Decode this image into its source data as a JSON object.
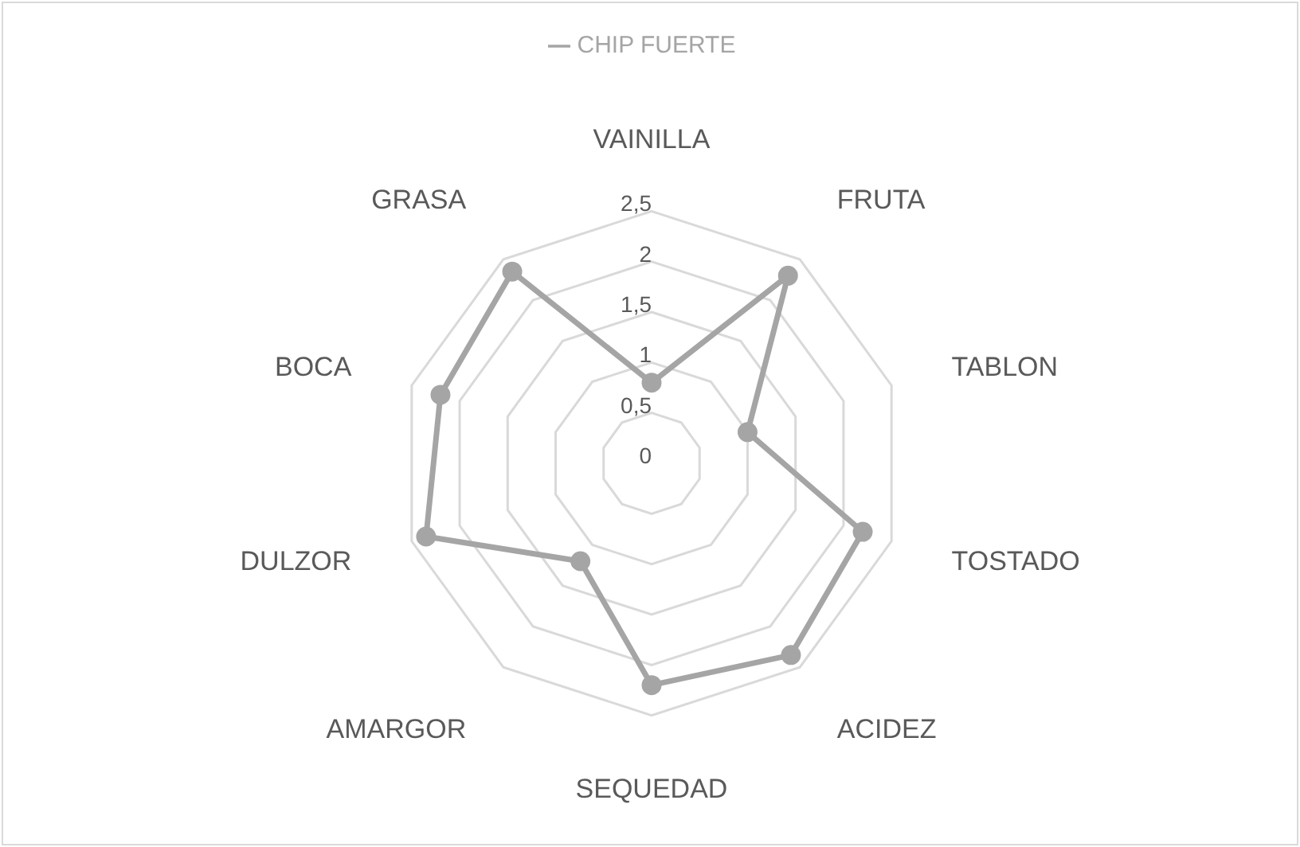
{
  "chart_data": {
    "type": "radar",
    "categories": [
      "VAINILLA",
      "FRUTA",
      "TABLON",
      "TOSTADO",
      "ACIDEZ",
      "SEQUEDAD",
      "AMARGOR",
      "DULZOR",
      "BOCA",
      "GRASA"
    ],
    "series": [
      {
        "name": "CHIP FUERTE",
        "color": "#a5a5a5",
        "values": [
          0.8,
          2.3,
          1.0,
          2.2,
          2.35,
          2.2,
          1.2,
          2.35,
          2.2,
          2.35
        ]
      }
    ],
    "ylim": [
      0,
      2.5
    ],
    "yticks": [
      0,
      {
        "value": 0.5,
        "label": "0,5"
      },
      1,
      {
        "value": 1.5,
        "label": "1,5"
      },
      2,
      {
        "value": 2.5,
        "label": "2,5"
      }
    ],
    "grid": true,
    "legend": "top",
    "marker": "circle",
    "line_style": "solid"
  }
}
